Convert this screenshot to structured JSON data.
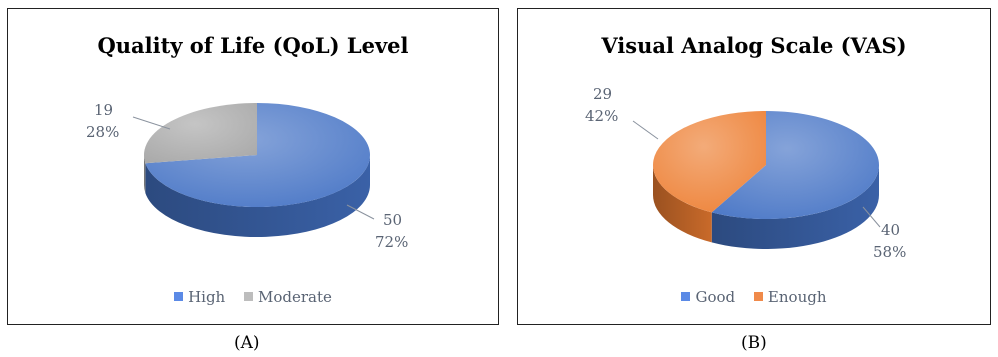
{
  "chart_data": [
    {
      "type": "pie",
      "title": "Quality of Life (QoL) Level",
      "slices": [
        {
          "name": "High",
          "value": 50,
          "percent": "72%",
          "color": "#4472c4"
        },
        {
          "name": "Moderate",
          "value": 19,
          "percent": "28%",
          "color": "#a5a5a5"
        }
      ],
      "legend": "bottom",
      "caption": "(A)"
    },
    {
      "type": "pie",
      "title": "Visual Analog Scale (VAS)",
      "slices": [
        {
          "name": "Good",
          "value": 40,
          "percent": "58%",
          "color": "#4472c4"
        },
        {
          "name": "Enough",
          "value": 29,
          "percent": "42%",
          "color": "#ed7d31"
        }
      ],
      "legend": "bottom",
      "caption": "(B)"
    }
  ]
}
